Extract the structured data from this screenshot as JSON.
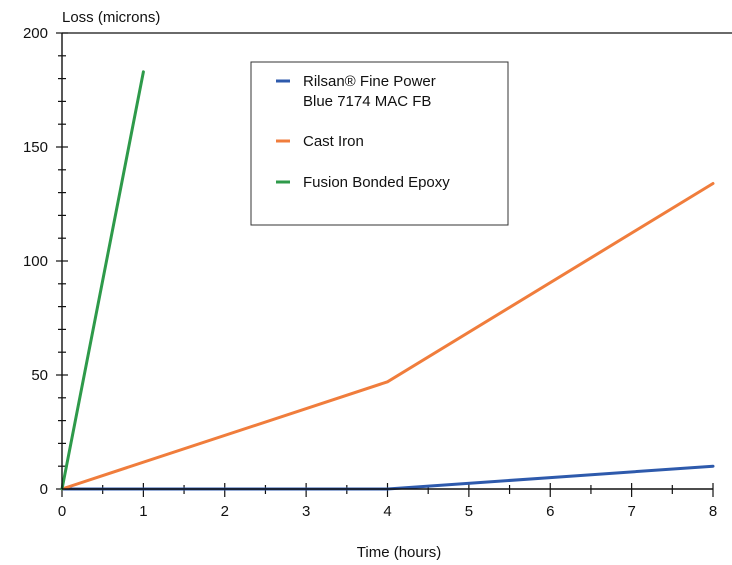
{
  "chart_data": {
    "type": "line",
    "ylabel": "Loss (microns)",
    "xlabel": "Time (hours)",
    "xlim": [
      0,
      8
    ],
    "ylim": [
      0,
      200
    ],
    "x_ticks": [
      0,
      1,
      2,
      3,
      4,
      5,
      6,
      7,
      8
    ],
    "y_ticks": [
      0,
      50,
      100,
      150,
      200
    ],
    "grid": false,
    "legend_position": "top-center",
    "series": [
      {
        "name": "Rilsan® Fine Power Blue 7174 MAC FB",
        "legend_lines": [
          "Rilsan® Fine Power",
          "Blue 7174 MAC FB"
        ],
        "color": "#2e5aac",
        "points": [
          [
            0,
            0
          ],
          [
            4,
            0
          ],
          [
            6,
            5
          ],
          [
            8,
            10
          ]
        ]
      },
      {
        "name": "Cast Iron",
        "legend_lines": [
          "Cast Iron"
        ],
        "color": "#f07d3c",
        "points": [
          [
            0,
            0
          ],
          [
            4,
            47
          ],
          [
            8,
            134
          ]
        ]
      },
      {
        "name": "Fusion Bonded Epoxy",
        "legend_lines": [
          "Fusion Bonded Epoxy"
        ],
        "color": "#2e9a4a",
        "points": [
          [
            0,
            0
          ],
          [
            1,
            183
          ]
        ]
      }
    ]
  }
}
